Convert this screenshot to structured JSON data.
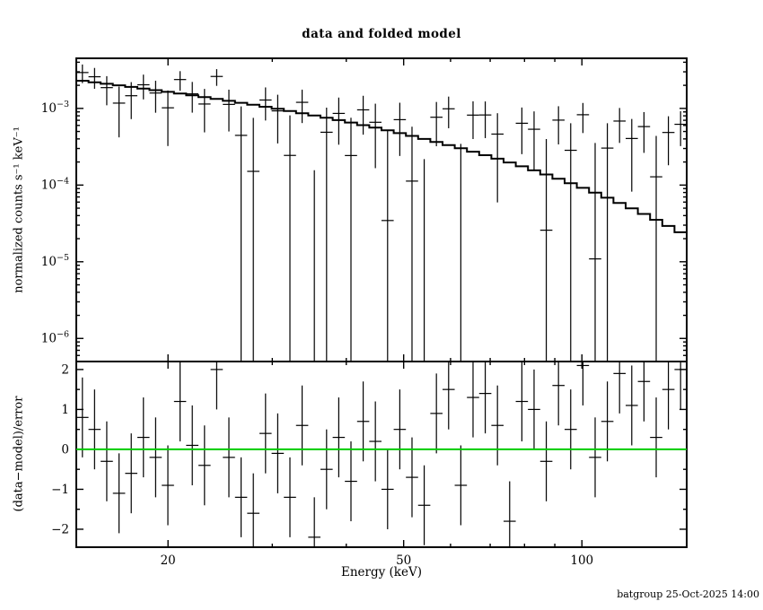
{
  "title": "data and folded model",
  "footer": "batgroup 25-Oct-2025 14:00",
  "colors": {
    "foreground": "#000000",
    "background": "#ffffff",
    "zero_line": "#00cc00"
  },
  "axes": {
    "x_label": "Energy (keV)",
    "y_label_top": "normalized counts s⁻¹ keV⁻¹",
    "y_label_bottom": "(data−model)/error",
    "x_ticks": [
      {
        "v": 20,
        "label": "20"
      },
      {
        "v": 30
      },
      {
        "v": 40
      },
      {
        "v": 50,
        "label": "50"
      },
      {
        "v": 60
      },
      {
        "v": 70
      },
      {
        "v": 80
      },
      {
        "v": 90
      },
      {
        "v": 100,
        "label": "100"
      }
    ],
    "y_ticks_top": [
      {
        "v": 0.001,
        "label": "10⁻³",
        "exp": "−3"
      },
      {
        "v": 0.0001,
        "label": "10⁻⁴",
        "exp": "−4"
      },
      {
        "v": 1e-05,
        "label": "10⁻⁵",
        "exp": "−5"
      },
      {
        "v": 1e-06,
        "label": "10⁻⁶",
        "exp": "−6"
      }
    ],
    "y_ticks_residual": [
      {
        "v": 2,
        "label": "2"
      },
      {
        "v": 1,
        "label": "1"
      },
      {
        "v": 0,
        "label": "0"
      },
      {
        "v": -1,
        "label": "−1"
      },
      {
        "v": -2,
        "label": "−2"
      }
    ],
    "y_minor_ticks_residual": [
      -1.5,
      -0.5,
      0.5,
      1.5
    ]
  },
  "chart_data": {
    "type": "scatter",
    "title": "data and folded model",
    "xlabel": "Energy (keV)",
    "ylabel": "normalized counts s⁻¹ keV⁻¹",
    "ylabel_residual": "(data−model)/error",
    "x_scale": "log",
    "y_scale_top": "log",
    "y_scale_residual": "linear",
    "x_range_kev": [
      14.0,
      150.31
    ],
    "y_range_top": [
      5e-07,
      0.0045
    ],
    "y_range_residual": [
      -2.45,
      2.2
    ],
    "legend": "none",
    "grid": false,
    "residual_rule": "(data − model) / error, error bars are ±1",
    "bin_edges_kev": [
      14.0,
      14.68,
      15.39,
      16.14,
      16.93,
      17.75,
      18.61,
      19.52,
      20.47,
      21.46,
      22.51,
      23.6,
      24.75,
      25.95,
      27.21,
      28.54,
      29.92,
      31.38,
      32.9,
      34.5,
      36.18,
      37.94,
      39.78,
      41.72,
      43.74,
      45.87,
      48.1,
      50.44,
      52.89,
      55.46,
      58.16,
      60.98,
      63.95,
      67.06,
      70.32,
      73.74,
      77.32,
      81.08,
      85.02,
      89.16,
      93.49,
      98.04,
      102.81,
      107.81,
      113.05,
      118.55,
      124.31,
      130.36,
      136.7,
      143.34,
      150.31
    ],
    "series": [
      {
        "name": "data",
        "style": "cross-errorbar",
        "values": [
          0.002936,
          0.002586,
          0.001866,
          0.001172,
          0.001463,
          0.002033,
          0.001587,
          0.001018,
          0.002378,
          0.001547,
          0.001141,
          0.002609,
          0.001128,
          0.000445,
          0.000151,
          0.001286,
          0.0009284,
          0.0002437,
          0.0012,
          -0.000389,
          0.0004886,
          0.0008603,
          0.0002428,
          0.0009576,
          0.0006592,
          3.45e-05,
          0.0007127,
          0.0001127,
          -0.000237,
          0.0007669,
          0.0009881,
          -8.37e-05,
          0.0008175,
          0.0008209,
          0.0004624,
          -0.0005137,
          0.0006401,
          0.0005347,
          2.58e-05,
          0.0007032,
          0.0002842,
          0.000827,
          1.09e-05,
          0.0003036,
          0.0006836,
          0.0004051,
          0.0005792,
          0.0001282,
          0.0004853,
          0.0006203
        ],
        "errors": [
          0.0008,
          0.000784,
          0.000768,
          0.000753,
          0.000738,
          0.000723,
          0.000709,
          0.000695,
          0.000681,
          0.000667,
          0.000654,
          0.000641,
          0.000628,
          0.000615,
          0.000603,
          0.000591,
          0.000579,
          0.000568,
          0.000556,
          0.000545,
          0.000534,
          0.000524,
          0.000513,
          0.000503,
          0.000493,
          0.000483,
          0.000473,
          0.000464,
          0.000455,
          0.000446,
          0.000437,
          0.000428,
          0.000419,
          0.000411,
          0.000403,
          0.000395,
          0.000387,
          0.000379,
          0.000372,
          0.000364,
          0.000357,
          0.00035,
          0.000343,
          0.000336,
          0.000329,
          0.000323,
          0.000316,
          0.00031,
          0.000304,
          0.000298
        ]
      },
      {
        "name": "folded model",
        "style": "step-histogram",
        "values": [
          0.002296,
          0.002194,
          0.002096,
          0.002,
          0.001906,
          0.001816,
          0.001729,
          0.001644,
          0.001561,
          0.00148,
          0.001403,
          0.001327,
          0.001254,
          0.001183,
          0.001116,
          0.00105,
          0.0009863,
          0.0009253,
          0.0008666,
          0.0008098,
          0.0007556,
          0.0007031,
          0.0006532,
          0.0006055,
          0.0005606,
          0.0005175,
          0.0004762,
          0.0004375,
          0.0004,
          0.0003655,
          0.0003326,
          0.0003015,
          0.0002728,
          0.0002455,
          0.0002206,
          0.0001973,
          0.0001757,
          0.0001557,
          0.0001374,
          0.0001208,
          0.0001057,
          9.202e-05,
          7.952e-05,
          6.842e-05,
          5.848e-05,
          4.977e-05,
          4.199e-05,
          3.524e-05,
          2.931e-05,
          2.427e-05
        ]
      }
    ]
  }
}
